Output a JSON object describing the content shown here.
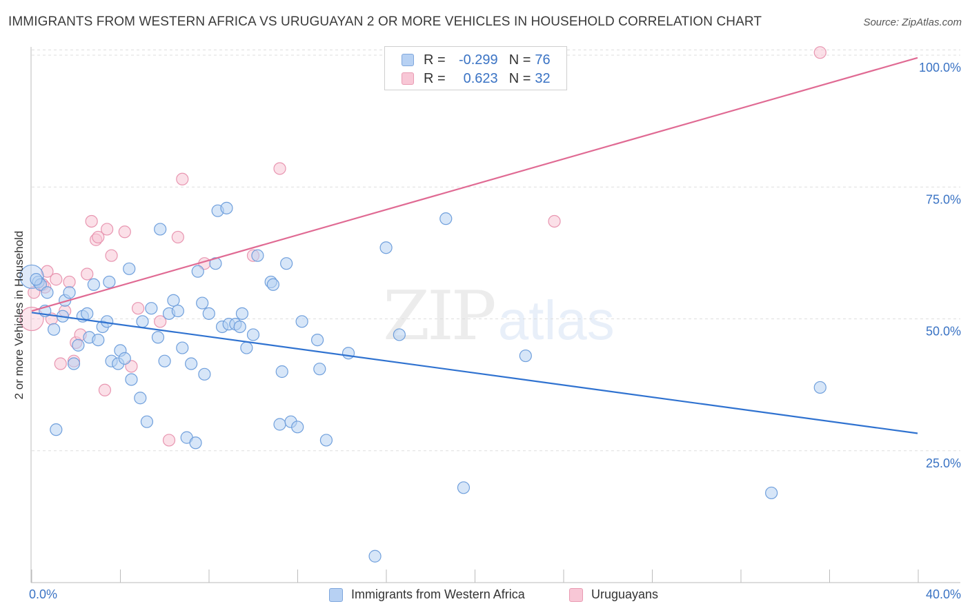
{
  "header": {
    "title": "IMMIGRANTS FROM WESTERN AFRICA VS URUGUAYAN 2 OR MORE VEHICLES IN HOUSEHOLD CORRELATION CHART",
    "source": "Source: ZipAtlas.com"
  },
  "watermark": {
    "zip": "ZIP",
    "atlas": "atlas"
  },
  "legend_top": {
    "rows": [
      {
        "r_label": "R =",
        "r_value": "-0.299",
        "n_label": "N =",
        "n_value": "76"
      },
      {
        "r_label": "R =",
        "r_value": "0.623",
        "n_label": "N =",
        "n_value": "32"
      }
    ]
  },
  "legend_bottom": {
    "items": [
      {
        "label": "Immigrants from Western Africa"
      },
      {
        "label": "Uruguayans"
      }
    ]
  },
  "colors": {
    "blue_fill": "#b7d1f3",
    "blue_stroke": "#6f9fdc",
    "blue_line": "#2f72d0",
    "pink_fill": "#f8c7d6",
    "pink_stroke": "#e895b0",
    "pink_line": "#e06a93",
    "tick_label": "#3a73c4",
    "grid": "#dddddd"
  },
  "chart_data": {
    "type": "scatter",
    "title": "IMMIGRANTS FROM WESTERN AFRICA VS URUGUAYAN 2 OR MORE VEHICLES IN HOUSEHOLD CORRELATION CHART",
    "xlabel": "",
    "ylabel": "2 or more Vehicles in Household",
    "xlim": [
      0,
      40
    ],
    "ylim": [
      0,
      105
    ],
    "x_tick_labels": [
      "0.0%",
      "40.0%"
    ],
    "y_ticks": [
      25,
      50,
      75,
      100
    ],
    "y_tick_labels": [
      "25.0%",
      "50.0%",
      "75.0%",
      "100.0%"
    ],
    "grid": "horizontal dashed",
    "legend_position": "top-center",
    "series": [
      {
        "name": "Immigrants from Western Africa",
        "color": "#6f9fdc",
        "stats": {
          "R": -0.299,
          "N": 76
        },
        "trendline": {
          "x": [
            0,
            40
          ],
          "y": [
            51.2,
            28.3
          ]
        },
        "points": [
          [
            0.0,
            58.0
          ],
          [
            0.3,
            57.0
          ],
          [
            0.4,
            56.5
          ],
          [
            0.6,
            51.5
          ],
          [
            0.7,
            55.0
          ],
          [
            1.0,
            48.0
          ],
          [
            1.1,
            29.0
          ],
          [
            1.4,
            50.5
          ],
          [
            1.5,
            53.5
          ],
          [
            1.7,
            55.0
          ],
          [
            1.9,
            41.5
          ],
          [
            2.1,
            45.0
          ],
          [
            2.3,
            50.5
          ],
          [
            2.5,
            51.0
          ],
          [
            2.6,
            46.5
          ],
          [
            2.8,
            56.5
          ],
          [
            3.0,
            46.0
          ],
          [
            3.2,
            48.5
          ],
          [
            3.4,
            49.5
          ],
          [
            3.5,
            57.0
          ],
          [
            3.6,
            42.0
          ],
          [
            3.9,
            41.5
          ],
          [
            4.0,
            44.0
          ],
          [
            4.2,
            42.5
          ],
          [
            4.5,
            38.5
          ],
          [
            4.4,
            59.5
          ],
          [
            4.9,
            35.0
          ],
          [
            5.0,
            49.5
          ],
          [
            5.2,
            30.5
          ],
          [
            5.4,
            52.0
          ],
          [
            5.7,
            46.5
          ],
          [
            5.8,
            67.0
          ],
          [
            6.0,
            42.0
          ],
          [
            6.2,
            51.0
          ],
          [
            6.4,
            53.5
          ],
          [
            6.6,
            51.5
          ],
          [
            6.8,
            44.5
          ],
          [
            7.0,
            27.5
          ],
          [
            7.2,
            41.5
          ],
          [
            7.4,
            26.5
          ],
          [
            7.5,
            59.0
          ],
          [
            7.7,
            53.0
          ],
          [
            7.8,
            39.5
          ],
          [
            8.0,
            51.0
          ],
          [
            8.3,
            60.5
          ],
          [
            8.4,
            70.5
          ],
          [
            8.6,
            48.5
          ],
          [
            8.8,
            71.0
          ],
          [
            8.9,
            49.0
          ],
          [
            9.2,
            49.0
          ],
          [
            9.4,
            48.5
          ],
          [
            9.5,
            51.0
          ],
          [
            9.7,
            44.5
          ],
          [
            10.0,
            47.0
          ],
          [
            10.2,
            62.0
          ],
          [
            10.8,
            57.0
          ],
          [
            10.9,
            56.5
          ],
          [
            11.2,
            30.0
          ],
          [
            11.3,
            40.0
          ],
          [
            11.5,
            60.5
          ],
          [
            11.7,
            30.5
          ],
          [
            12.0,
            29.5
          ],
          [
            12.2,
            49.5
          ],
          [
            12.9,
            46.0
          ],
          [
            13.0,
            40.5
          ],
          [
            13.3,
            27.0
          ],
          [
            14.3,
            43.5
          ],
          [
            15.5,
            5.0
          ],
          [
            16.0,
            63.5
          ],
          [
            16.6,
            47.0
          ],
          [
            18.7,
            69.0
          ],
          [
            19.5,
            18.0
          ],
          [
            22.3,
            43.0
          ],
          [
            33.4,
            17.0
          ],
          [
            35.6,
            37.0
          ],
          [
            0.2,
            57.5
          ]
        ]
      },
      {
        "name": "Uruguayans",
        "color": "#e895b0",
        "stats": {
          "R": 0.623,
          "N": 32
        },
        "trendline": {
          "x": [
            0,
            40
          ],
          "y": [
            51.5,
            99.5
          ]
        },
        "points": [
          [
            0.0,
            50.0
          ],
          [
            0.5,
            56.5
          ],
          [
            0.6,
            56.0
          ],
          [
            0.7,
            59.0
          ],
          [
            0.9,
            50.0
          ],
          [
            1.1,
            57.5
          ],
          [
            1.3,
            41.5
          ],
          [
            1.5,
            51.5
          ],
          [
            1.7,
            57.0
          ],
          [
            1.9,
            42.0
          ],
          [
            2.0,
            45.5
          ],
          [
            2.2,
            47.0
          ],
          [
            2.5,
            58.5
          ],
          [
            2.7,
            68.5
          ],
          [
            2.9,
            65.0
          ],
          [
            3.0,
            65.5
          ],
          [
            3.3,
            36.5
          ],
          [
            3.4,
            67.0
          ],
          [
            3.6,
            62.0
          ],
          [
            4.2,
            66.5
          ],
          [
            4.5,
            41.0
          ],
          [
            4.8,
            52.0
          ],
          [
            5.8,
            49.5
          ],
          [
            6.2,
            27.0
          ],
          [
            6.6,
            65.5
          ],
          [
            6.8,
            76.5
          ],
          [
            7.8,
            60.5
          ],
          [
            10.0,
            62.0
          ],
          [
            11.2,
            78.5
          ],
          [
            23.6,
            68.5
          ],
          [
            35.6,
            100.5
          ],
          [
            0.1,
            55.0
          ]
        ]
      }
    ]
  }
}
